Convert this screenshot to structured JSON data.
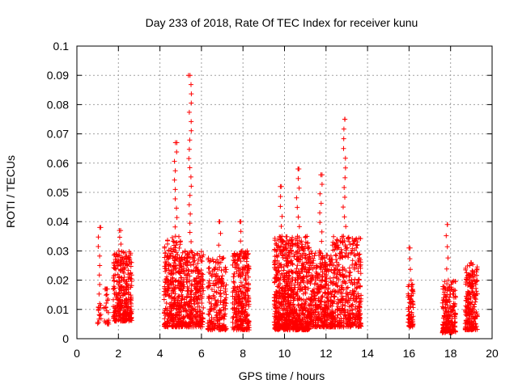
{
  "chart_data": {
    "type": "scatter",
    "title": "Day 233 of 2018, Rate Of TEC Index for receiver kunu",
    "xlabel": "GPS time / hours",
    "ylabel": "ROTI / TECUs",
    "xlim": [
      0,
      20
    ],
    "ylim": [
      0,
      0.1
    ],
    "xticks": [
      0,
      2,
      4,
      6,
      8,
      10,
      12,
      14,
      16,
      18,
      20
    ],
    "xtick_labels": [
      "0",
      "2",
      "4",
      "6",
      "8",
      "10",
      "12",
      "14",
      "16",
      "18",
      "20"
    ],
    "yticks": [
      0,
      0.01,
      0.02,
      0.03,
      0.04,
      0.05,
      0.06,
      0.07,
      0.08,
      0.09,
      0.1
    ],
    "ytick_labels": [
      "0",
      "0.01",
      "0.02",
      "0.03",
      "0.04",
      "0.05",
      "0.06",
      "0.07",
      "0.08",
      "0.09",
      "0.1"
    ],
    "grid": true,
    "marker": "+",
    "color": "#ff0000",
    "clusters": [
      {
        "x_range": [
          1.0,
          1.2
        ],
        "y_range": [
          0.005,
          0.012
        ],
        "count": 14,
        "peak": [
          1.1,
          0.038
        ]
      },
      {
        "x_range": [
          1.3,
          1.55
        ],
        "y_range": [
          0.005,
          0.017
        ],
        "count": 20,
        "peak": [
          1.4,
          0.017
        ]
      },
      {
        "x_range": [
          1.75,
          2.65
        ],
        "y_range": [
          0.006,
          0.03
        ],
        "count": 320,
        "peak": [
          2.05,
          0.037
        ]
      },
      {
        "x_range": [
          4.2,
          5.0
        ],
        "y_range": [
          0.004,
          0.035
        ],
        "count": 300,
        "peak": [
          4.75,
          0.067
        ]
      },
      {
        "x_range": [
          5.0,
          6.1
        ],
        "y_range": [
          0.004,
          0.03
        ],
        "count": 360,
        "peak": [
          5.45,
          0.09
        ]
      },
      {
        "x_range": [
          6.3,
          7.2
        ],
        "y_range": [
          0.003,
          0.028
        ],
        "count": 220,
        "peak": [
          6.85,
          0.04
        ]
      },
      {
        "x_range": [
          7.5,
          8.3
        ],
        "y_range": [
          0.003,
          0.03
        ],
        "count": 300,
        "peak": [
          7.9,
          0.04
        ]
      },
      {
        "x_range": [
          9.5,
          10.2
        ],
        "y_range": [
          0.003,
          0.035
        ],
        "count": 360,
        "peak": [
          9.85,
          0.052
        ]
      },
      {
        "x_range": [
          10.2,
          11.2
        ],
        "y_range": [
          0.003,
          0.035
        ],
        "count": 420,
        "peak": [
          10.65,
          0.058
        ]
      },
      {
        "x_range": [
          11.2,
          12.3
        ],
        "y_range": [
          0.004,
          0.03
        ],
        "count": 360,
        "peak": [
          11.75,
          0.056
        ]
      },
      {
        "x_range": [
          12.3,
          13.7
        ],
        "y_range": [
          0.004,
          0.035
        ],
        "count": 420,
        "peak": [
          12.9,
          0.075
        ]
      },
      {
        "x_range": [
          15.95,
          16.2
        ],
        "y_range": [
          0.004,
          0.02
        ],
        "count": 70,
        "peak": [
          16.05,
          0.031
        ]
      },
      {
        "x_range": [
          17.6,
          18.25
        ],
        "y_range": [
          0.002,
          0.02
        ],
        "count": 200,
        "peak": [
          17.85,
          0.039
        ]
      },
      {
        "x_range": [
          18.7,
          19.3
        ],
        "y_range": [
          0.003,
          0.025
        ],
        "count": 220,
        "peak": [
          19.0,
          0.026
        ]
      }
    ]
  }
}
